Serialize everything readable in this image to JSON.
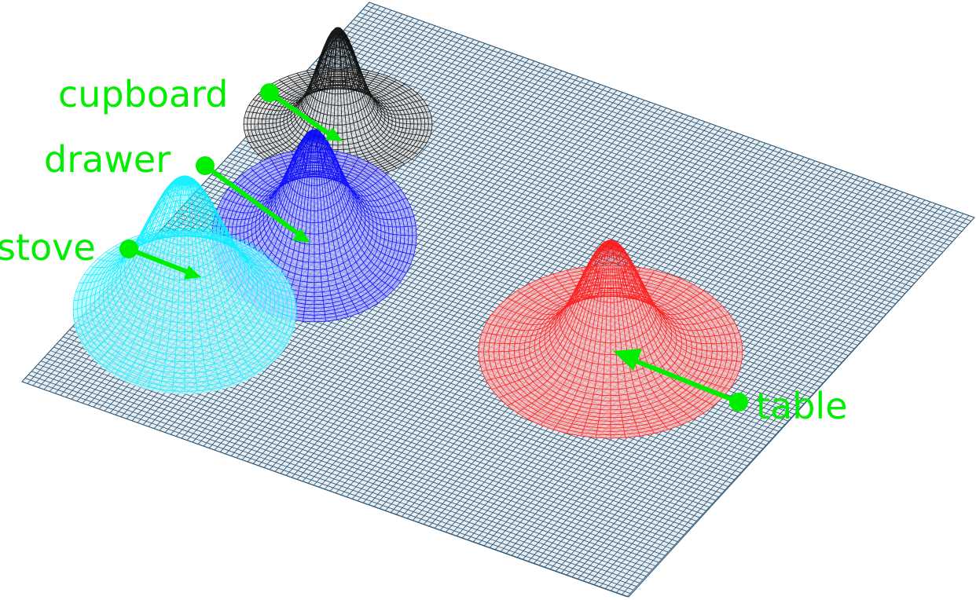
{
  "colors": {
    "floor_grid": "#2f5a7a",
    "arrow": "#00ee00",
    "label": "#00ee00",
    "background": "#ffffff"
  },
  "peaks": [
    {
      "id": "cupboard",
      "label": "cupboard",
      "color": "#000000",
      "fill": "#dcdcdc"
    },
    {
      "id": "drawer",
      "label": "drawer",
      "color": "#0000ff",
      "fill": "#aaaaff"
    },
    {
      "id": "stove",
      "label": "stove",
      "color": "#00eeff",
      "fill": "#aaf8ff"
    },
    {
      "id": "table",
      "label": "table",
      "color": "#ff1111",
      "fill": "#ffb0b0"
    }
  ]
}
